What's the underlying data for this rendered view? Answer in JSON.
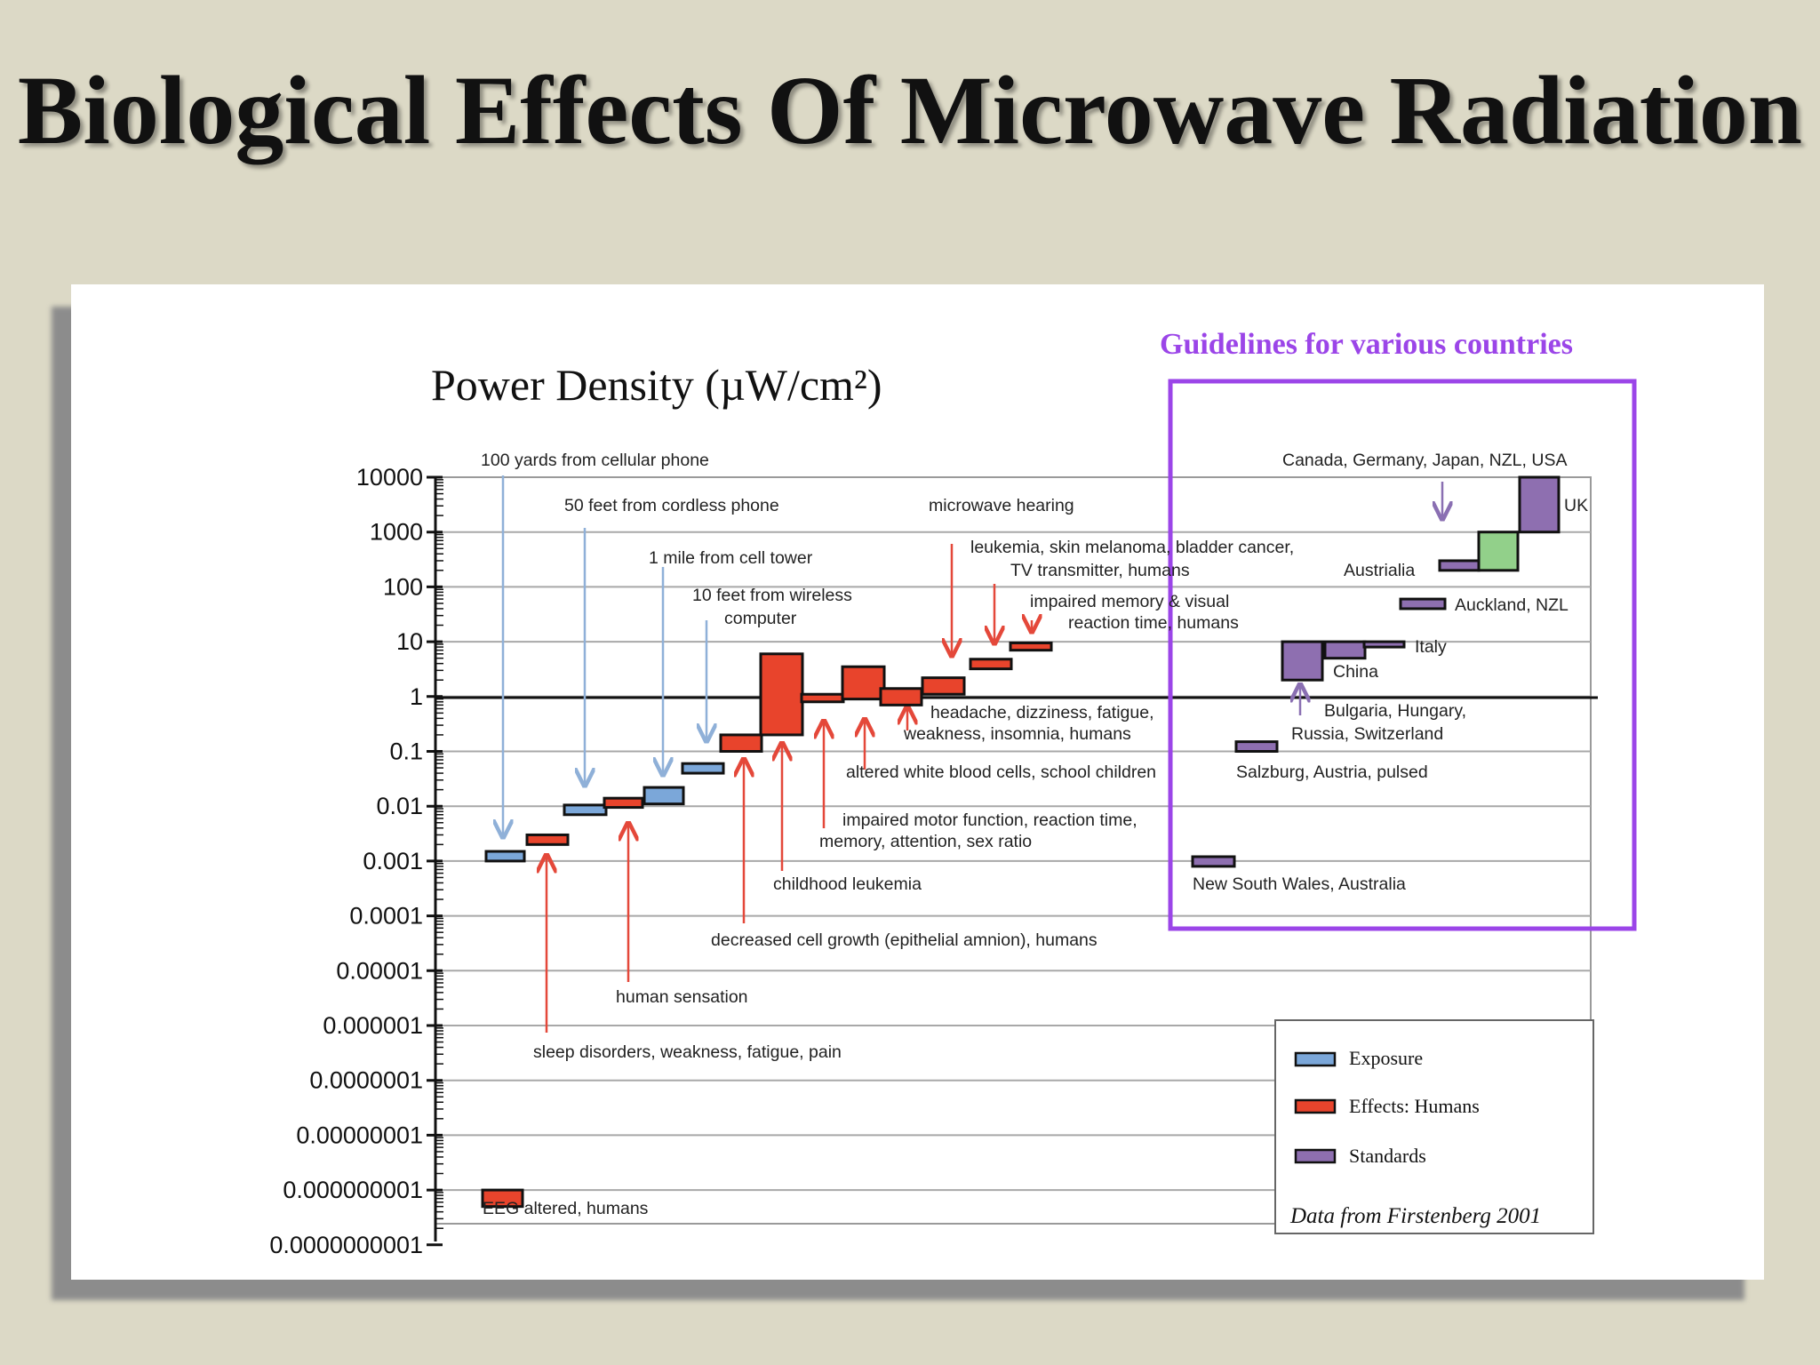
{
  "slide": {
    "title": "Biological Effects Of Microwave Radiation"
  },
  "colors": {
    "exposure": "#7ba7d9",
    "effects": "#e8442c",
    "standards": "#8e6fb0",
    "standards_green": "#92d08a",
    "guidelines_box": "#9b45e8",
    "arrow_exposure": "#8fb0d8",
    "arrow_effects": "#e4483a",
    "arrow_standards": "#8a6fb2"
  },
  "chart_data": {
    "type": "bar",
    "title": "Power Density (µW/cm²)",
    "y_scale": "log",
    "ylim": [
      1e-10,
      10000
    ],
    "y_ticks": [
      "10000",
      "1000",
      "100",
      "10",
      "1",
      "0.1",
      "0.01",
      "0.001",
      "0.0001",
      "0.00001",
      "0.000001",
      "0.0000001",
      "0.00000001",
      "0.000000001",
      "0.0000000001"
    ],
    "grid": true,
    "reference_line": 1,
    "guidelines_title": "Guidelines for various countries",
    "legend": {
      "placement": "bottom-right",
      "items": [
        {
          "label": "Exposure",
          "category": "exposure"
        },
        {
          "label": "Effects:  Humans",
          "category": "effects"
        },
        {
          "label": "Standards",
          "category": "standards"
        }
      ],
      "note": "Data from Firstenberg 2001"
    },
    "bars": [
      {
        "category": "exposure",
        "low": 0.001,
        "high": 0.0015
      },
      {
        "category": "effects",
        "low": 0.002,
        "high": 0.003
      },
      {
        "category": "exposure",
        "low": 0.007,
        "high": 0.0105
      },
      {
        "category": "effects",
        "low": 0.0095,
        "high": 0.014
      },
      {
        "category": "exposure",
        "low": 0.011,
        "high": 0.022
      },
      {
        "category": "exposure",
        "low": 0.04,
        "high": 0.06
      },
      {
        "category": "effects",
        "low": 0.1,
        "high": 0.2
      },
      {
        "category": "effects",
        "low": 0.2,
        "high": 6
      },
      {
        "category": "effects",
        "low": 0.8,
        "high": 1.1
      },
      {
        "category": "effects",
        "low": 0.9,
        "high": 3.5
      },
      {
        "category": "effects",
        "low": 0.7,
        "high": 1.4
      },
      {
        "category": "effects",
        "low": 1.1,
        "high": 2.2
      },
      {
        "category": "effects",
        "low": 3.2,
        "high": 4.8
      },
      {
        "category": "effects",
        "low": 7,
        "high": 9.5
      },
      {
        "category": "standards",
        "low": 0.0008,
        "high": 0.0012
      },
      {
        "category": "standards",
        "low": 0.1,
        "high": 0.15
      },
      {
        "category": "standards",
        "low": 2,
        "high": 10
      },
      {
        "category": "standards",
        "low": 5,
        "high": 10
      },
      {
        "category": "standards",
        "low": 8,
        "high": 10
      },
      {
        "category": "standards",
        "low": 40,
        "high": 60
      },
      {
        "category": "standards",
        "low": 200,
        "high": 300
      },
      {
        "category": "standards_green",
        "low": 200,
        "high": 1000
      },
      {
        "category": "standards",
        "low": 1000,
        "high": 10000
      },
      {
        "category": "effects",
        "low": 5e-10,
        "high": 1e-09
      }
    ],
    "annotations": [
      "100 yards from cellular phone",
      "50 feet from cordless phone",
      "1 mile from cell tower",
      "10 feet from wireless",
      "computer",
      "microwave hearing",
      "leukemia, skin melanoma, bladder cancer,",
      "TV transmitter, humans",
      "impaired memory & visual",
      "reaction time, humans",
      "headache, dizziness, fatigue,",
      "weakness, insomnia, humans",
      "altered white blood cells, school children",
      "impaired motor function, reaction time,",
      "memory, attention, sex ratio",
      "childhood leukemia",
      "decreased cell growth (epithelial amnion), humans",
      "human sensation",
      "sleep disorders, weakness, fatigue, pain",
      "EEG altered, humans",
      "Canada, Germany, Japan, NZL, USA",
      "UK",
      "Austrialia",
      "Auckland, NZL",
      "Italy",
      "China",
      "Bulgaria, Hungary,",
      "Russia, Switzerland",
      "Salzburg, Austria, pulsed",
      "New South Wales, Australia"
    ]
  }
}
